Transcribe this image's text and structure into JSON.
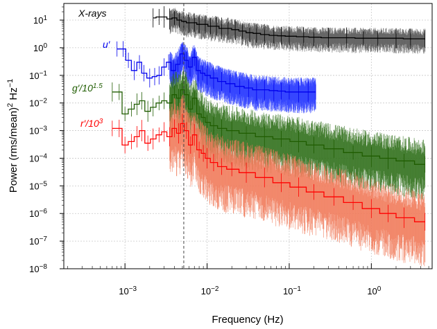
{
  "chart_data": {
    "type": "line",
    "title": "",
    "xlabel": "Frequency (Hz)",
    "ylabel_parts": [
      "Power (rms/mean)",
      "2",
      " Hz",
      "−1"
    ],
    "xscale": "log",
    "yscale": "log",
    "xlim": [
      0.00018,
      5.5
    ],
    "ylim": [
      1e-08,
      40
    ],
    "grid": true,
    "xticks": [
      {
        "value": 0.001,
        "base": "10",
        "exp": "−3"
      },
      {
        "value": 0.01,
        "base": "10",
        "exp": "−2"
      },
      {
        "value": 0.1,
        "base": "10",
        "exp": "−1"
      },
      {
        "value": 1,
        "base": "10",
        "exp": "0"
      }
    ],
    "yticks": [
      {
        "value": 10,
        "base": "10",
        "exp": "1"
      },
      {
        "value": 1,
        "base": "10",
        "exp": "0"
      },
      {
        "value": 0.1,
        "base": "10",
        "exp": "−1"
      },
      {
        "value": 0.01,
        "base": "10",
        "exp": "−2"
      },
      {
        "value": 0.001,
        "base": "10",
        "exp": "−3"
      },
      {
        "value": 0.0001,
        "base": "10",
        "exp": "−4"
      },
      {
        "value": 1e-05,
        "base": "10",
        "exp": "−5"
      },
      {
        "value": 1e-06,
        "base": "10",
        "exp": "−6"
      },
      {
        "value": 1e-07,
        "base": "10",
        "exp": "−7"
      },
      {
        "value": 1e-08,
        "base": "10",
        "exp": "−8"
      }
    ],
    "vline_x": 0.0052,
    "series": [
      {
        "name": "X-rays",
        "label_parts": [
          "X-rays"
        ],
        "color": "#000000",
        "scatter_color": "#555555",
        "x": [
          0.0022,
          0.0026,
          0.003,
          0.0035,
          0.004,
          0.0046,
          0.0052,
          0.006,
          0.007,
          0.008,
          0.0095,
          0.011,
          0.013,
          0.015,
          0.018,
          0.022,
          0.027,
          0.033,
          0.04,
          0.05,
          0.065,
          0.08,
          0.1,
          0.15,
          0.2,
          0.3,
          0.5,
          0.8,
          1.2,
          2,
          3,
          4.5
        ],
        "values": [
          12,
          13,
          13,
          11,
          12,
          10,
          9,
          8,
          8,
          7,
          7,
          6,
          6,
          5,
          5,
          4.5,
          4,
          3.5,
          3.3,
          3,
          2.8,
          2.7,
          2.6,
          2.5,
          2.4,
          2.3,
          2.3,
          2.2,
          2.2,
          2.2,
          2.1,
          2.1
        ]
      },
      {
        "name": "u'",
        "label_parts": [
          "u′"
        ],
        "color": "#0000ee",
        "scatter_color": "#3344ff",
        "x": [
          0.0008,
          0.00095,
          0.0011,
          0.0013,
          0.0015,
          0.0017,
          0.002,
          0.0023,
          0.0026,
          0.003,
          0.0034,
          0.0039,
          0.0044,
          0.005,
          0.0056,
          0.0062,
          0.007,
          0.0078,
          0.0088,
          0.01,
          0.012,
          0.015,
          0.019,
          0.025,
          0.032,
          0.04,
          0.05,
          0.065,
          0.08,
          0.1,
          0.13,
          0.17,
          0.21
        ],
        "values": [
          0.9,
          0.9,
          0.35,
          0.15,
          0.3,
          0.12,
          0.08,
          0.09,
          0.1,
          0.2,
          0.3,
          0.15,
          0.25,
          0.6,
          0.35,
          0.2,
          0.45,
          0.15,
          0.12,
          0.1,
          0.08,
          0.06,
          0.05,
          0.04,
          0.035,
          0.03,
          0.03,
          0.028,
          0.027,
          0.025,
          0.025,
          0.025,
          0.025
        ]
      },
      {
        "name": "g'/10^1.5",
        "label_parts": [
          "g′/10",
          "1.5"
        ],
        "color": "#1f5c00",
        "scatter_color": "#2f6f1a",
        "x": [
          0.0007,
          0.00085,
          0.001,
          0.0012,
          0.0014,
          0.0016,
          0.0019,
          0.0022,
          0.0026,
          0.003,
          0.0035,
          0.004,
          0.0045,
          0.005,
          0.0056,
          0.0063,
          0.007,
          0.008,
          0.009,
          0.01,
          0.012,
          0.015,
          0.02,
          0.03,
          0.05,
          0.08,
          0.13,
          0.2,
          0.35,
          0.6,
          1,
          1.6,
          2.5,
          4.5
        ],
        "values": [
          0.025,
          0.025,
          0.004,
          0.006,
          0.009,
          0.012,
          0.005,
          0.007,
          0.01,
          0.012,
          0.01,
          0.02,
          0.015,
          0.03,
          0.02,
          0.006,
          0.015,
          0.004,
          0.003,
          0.002,
          0.0015,
          0.0012,
          0.001,
          0.0008,
          0.0006,
          0.0005,
          0.0004,
          0.0003,
          0.00022,
          0.00016,
          0.00012,
          0.0001,
          8e-05,
          6e-05
        ]
      },
      {
        "name": "r'/10^3",
        "label_parts": [
          "r′/10",
          "3"
        ],
        "color": "#ff0000",
        "scatter_color": "#f07a5a",
        "x": [
          0.0007,
          0.00085,
          0.001,
          0.0012,
          0.0014,
          0.0016,
          0.0019,
          0.0022,
          0.0026,
          0.003,
          0.0035,
          0.004,
          0.0045,
          0.005,
          0.0056,
          0.0063,
          0.007,
          0.008,
          0.009,
          0.01,
          0.012,
          0.015,
          0.02,
          0.03,
          0.05,
          0.08,
          0.13,
          0.2,
          0.35,
          0.6,
          1,
          1.6,
          2.5,
          4.5
        ],
        "values": [
          0.0012,
          0.0012,
          0.0003,
          0.0004,
          0.0006,
          0.001,
          0.00035,
          0.0005,
          0.0007,
          0.0009,
          0.0006,
          0.0012,
          0.0008,
          0.0018,
          0.001,
          0.0003,
          0.0007,
          0.0002,
          0.00015,
          0.0001,
          7e-05,
          5e-05,
          4e-05,
          3e-05,
          2e-05,
          1.3e-05,
          9e-06,
          6e-06,
          4e-06,
          2.5e-06,
          1.5e-06,
          1e-06,
          7e-07,
          5e-07
        ]
      }
    ]
  }
}
